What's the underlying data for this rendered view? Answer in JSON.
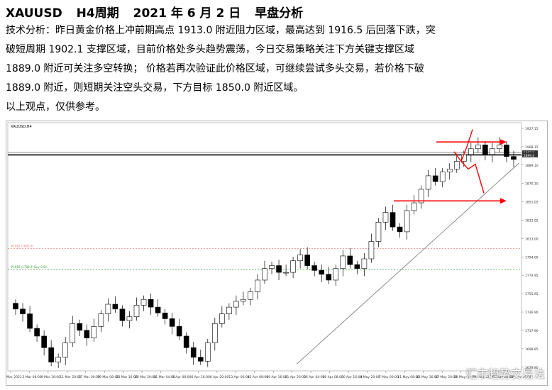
{
  "header": {
    "symbol": "XAUUSD",
    "timeframe": "H4周期",
    "date": "2021 年 6 月 2 日",
    "session": "早盘分析"
  },
  "analysis": {
    "lines": [
      "技术分析：昨日黄金价格上冲前期高点 1913.0 附近阻力区域，最高达到 1916.5 后回落下跌，突",
      "破短周期 1902.1 支撑区域，目前价格处多头趋势震荡，今日交易策略关注下方关键支撑区域",
      "1889.0 附近可关注多空转换；  价格若再次验证此价格区域，可继续尝试多头交易，若价格下破",
      "1889.0 附近，则短期关注空头交易，下方目标 1850.0 附近区域。"
    ],
    "disclaimer": "以上观点，仅供参考。"
  },
  "chart_data": {
    "type": "candlestick",
    "instrument_label": "XAUUSD,H4",
    "price_axis_ticks": [
      1927.15,
      1908.15,
      1889.1,
      1870.1,
      1851.05,
      1832.05,
      1813.0,
      1794.0,
      1774.95,
      1755.95,
      1736.9,
      1717.9,
      1698.85,
      1679.8
    ],
    "time_axis_labels": [
      "2 Mar 2021",
      "5 Mar 08:00",
      "9 Mar 16:00",
      "11 Mar 20:00",
      "17 Mar 00:00",
      "19 Mar 08:00",
      "23 Mar 16:00",
      "25 Mar 20:00",
      "31 Mar 04:00",
      "2 Apr 08:00",
      "6 Apr 16:00",
      "8 Apr 20:00",
      "13 Apr 00:00",
      "15 Apr 08:00",
      "19 Apr 16:00",
      "21 Apr 20:00",
      "26 Apr 04:00",
      "28 Apr 08:00",
      "30 Apr 16:00",
      "4 May 20:00",
      "7 May 00:00",
      "11 May 08:00",
      "13 May 16:00",
      "17 May 20:00",
      "20 May 04:00",
      "24 May 12:00",
      "26 May 16:00",
      "28 May 20:00"
    ],
    "approx_closes": [
      1740,
      1735,
      1720,
      1712,
      1700,
      1685,
      1690,
      1705,
      1725,
      1718,
      1710,
      1722,
      1735,
      1745,
      1740,
      1728,
      1732,
      1744,
      1750,
      1742,
      1736,
      1730,
      1722,
      1712,
      1700,
      1690,
      1686,
      1705,
      1725,
      1735,
      1742,
      1748,
      1750,
      1758,
      1770,
      1782,
      1785,
      1778,
      1778,
      1790,
      1796,
      1785,
      1780,
      1776,
      1770,
      1782,
      1795,
      1786,
      1782,
      1792,
      1810,
      1830,
      1840,
      1825,
      1820,
      1842,
      1850,
      1864,
      1878,
      1872,
      1882,
      1885,
      1893,
      1900,
      1906,
      1910,
      1900,
      1906,
      1910,
      1898,
      1895
    ],
    "reference_lines": [
      {
        "label": "1902.1",
        "price": 1902.1,
        "color": "#808080"
      },
      {
        "label": "1899.9",
        "price": 1899.9,
        "color": "#000000"
      },
      {
        "label": "1899.3",
        "price": 1899.3,
        "color": "#000000"
      },
      {
        "label": "#1682 (1802.6)",
        "price": 1802.6,
        "color": "#e08080",
        "style": "dashed"
      },
      {
        "label": "#1682 (1780.9) Buy 0.02",
        "price": 1780.9,
        "color": "#40a040",
        "style": "dashed"
      }
    ],
    "arrows": [
      {
        "price": 1913.0,
        "direction": "right",
        "color": "#ff0000"
      },
      {
        "price": 1852.0,
        "direction": "right",
        "color": "#ff0000"
      }
    ],
    "trendline": {
      "from": [
        1683,
        "start"
      ],
      "to": [
        1885,
        "end"
      ],
      "color": "#808080"
    },
    "grid": false
  },
  "watermark": "汇市趋势交易法"
}
